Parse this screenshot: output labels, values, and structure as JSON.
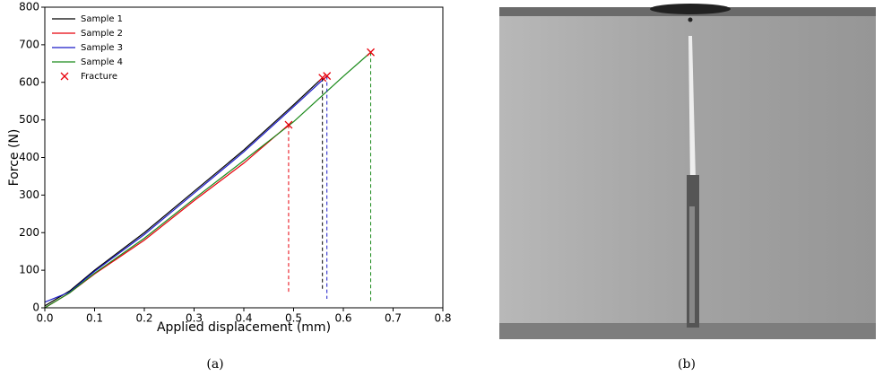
{
  "chart_data": {
    "type": "line",
    "xlabel": "Applied displacement (mm)",
    "ylabel": "Force (N)",
    "xlim": [
      0,
      0.8
    ],
    "ylim": [
      0,
      800
    ],
    "xticks": [
      {
        "value": 0,
        "label": "0.0"
      },
      {
        "value": 0.1,
        "label": "0.1"
      },
      {
        "value": 0.2,
        "label": "0.2"
      },
      {
        "value": 0.3,
        "label": "0.3"
      },
      {
        "value": 0.4,
        "label": "0.4"
      },
      {
        "value": 0.5,
        "label": "0.5"
      },
      {
        "value": 0.6,
        "label": "0.6"
      },
      {
        "value": 0.7,
        "label": "0.7"
      },
      {
        "value": 0.8,
        "label": "0.8"
      }
    ],
    "yticks": [
      0,
      100,
      200,
      300,
      400,
      500,
      600,
      700,
      800
    ],
    "legend": "upper left",
    "series": [
      {
        "name": "Sample 1",
        "color": "#000000",
        "x": [
          0,
          0.05,
          0.1,
          0.2,
          0.3,
          0.4,
          0.5,
          0.558
        ],
        "values": [
          5,
          45,
          100,
          200,
          310,
          420,
          540,
          612
        ]
      },
      {
        "name": "Sample 2",
        "color": "#e8000b",
        "x": [
          0,
          0.05,
          0.1,
          0.2,
          0.3,
          0.4,
          0.49
        ],
        "values": [
          0,
          40,
          90,
          180,
          285,
          385,
          487
        ]
      },
      {
        "name": "Sample 3",
        "color": "#1a1ac8",
        "x": [
          0,
          0.05,
          0.1,
          0.2,
          0.3,
          0.4,
          0.5,
          0.567
        ],
        "values": [
          15,
          42,
          97,
          195,
          305,
          415,
          535,
          617
        ]
      },
      {
        "name": "Sample 4",
        "color": "#1a8a1a",
        "x": [
          0,
          0.05,
          0.1,
          0.2,
          0.3,
          0.4,
          0.5,
          0.6,
          0.655
        ],
        "values": [
          0,
          40,
          92,
          185,
          290,
          392,
          495,
          616,
          680
        ]
      },
      {
        "name": "Fracture",
        "color": "#e8000b",
        "style": "marker",
        "x": [
          0.558,
          0.49,
          0.567,
          0.655
        ],
        "values": [
          612,
          487,
          617,
          680
        ]
      }
    ]
  },
  "captions": [
    "(a)",
    "(b)"
  ]
}
